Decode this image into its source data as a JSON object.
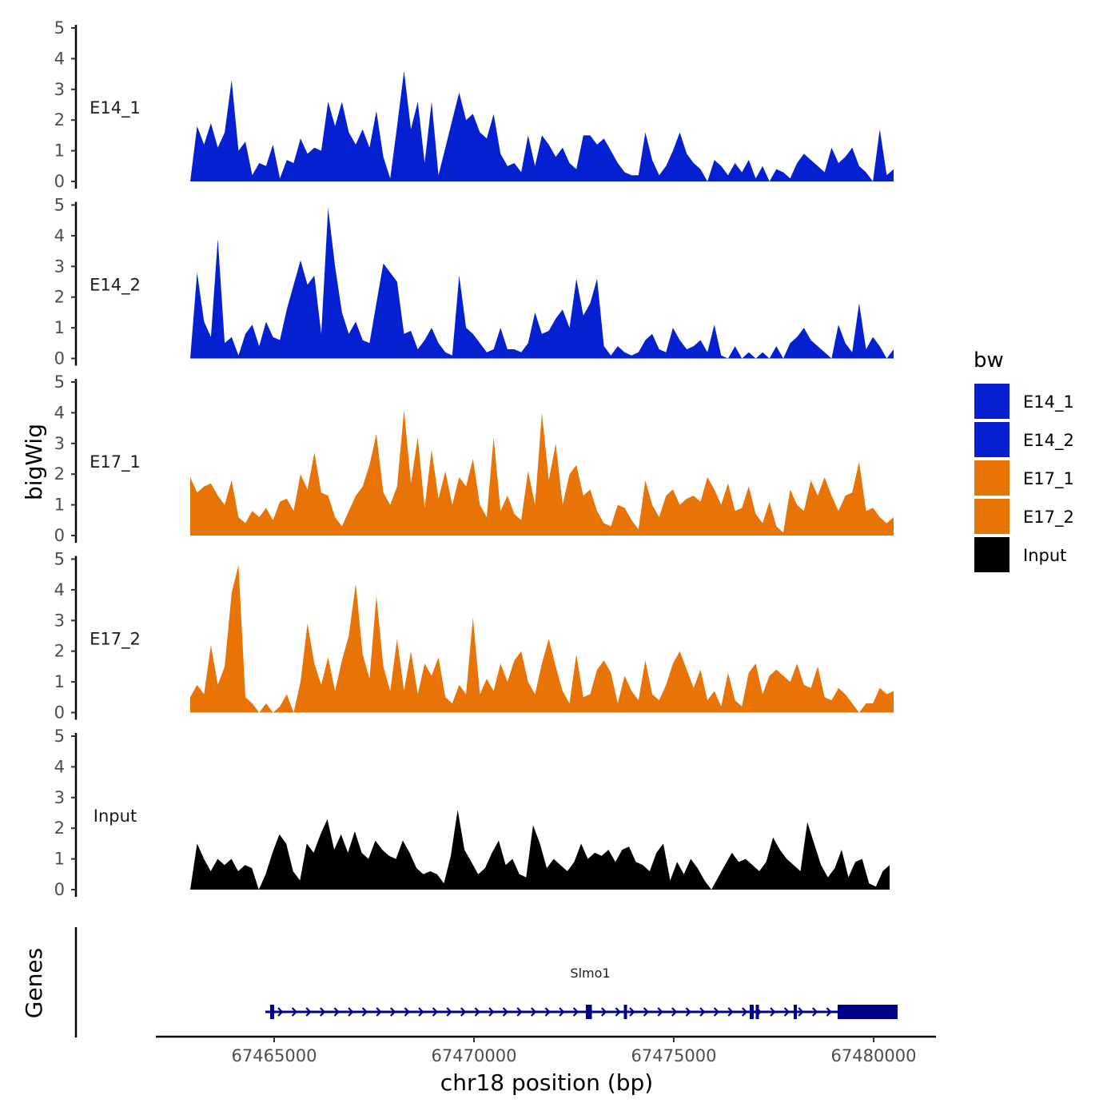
{
  "chart_data": {
    "type": "area",
    "title": "",
    "xlabel": "chr18 position (bp)",
    "ylabel": "bigWig",
    "genes_label": "Genes",
    "xlim": [
      67462000,
      67481500
    ],
    "ylim": [
      0,
      5
    ],
    "x_ticks": [
      67465000,
      67470000,
      67475000,
      67480000
    ],
    "x_tick_labels": [
      "67465000",
      "67470000",
      "67475000",
      "67480000"
    ],
    "y_ticks": [
      0,
      1,
      2,
      3,
      4,
      5
    ],
    "y_tick_labels": [
      "0",
      "1",
      "2",
      "3",
      "4",
      "5"
    ],
    "legend": {
      "title": "bw",
      "position": "right",
      "entries": [
        {
          "label": "E14_1",
          "color": "#0420D0"
        },
        {
          "label": "E14_2",
          "color": "#0420D0"
        },
        {
          "label": "E17_1",
          "color": "#E87306"
        },
        {
          "label": "E17_2",
          "color": "#E87306"
        },
        {
          "label": "Input",
          "color": "#000000"
        }
      ]
    },
    "series": [
      {
        "name": "E14_1",
        "color": "#0420D0",
        "x_start": 67462900,
        "x_end": 67480500,
        "values": [
          0,
          1.8,
          1.2,
          1.9,
          1.1,
          1.6,
          3.3,
          1.0,
          1.3,
          0.2,
          0.6,
          0.5,
          1.2,
          0.1,
          0.7,
          0.6,
          1.4,
          0.9,
          1.1,
          1.0,
          2.6,
          1.8,
          2.6,
          1.6,
          1.2,
          1.7,
          1.1,
          2.3,
          0.8,
          0.1,
          1.8,
          3.6,
          1.7,
          2.6,
          0.6,
          2.6,
          0.2,
          1.1,
          2.0,
          2.9,
          2.0,
          2.2,
          1.6,
          1.4,
          2.2,
          0.9,
          0.5,
          0.6,
          0.3,
          1.5,
          0.5,
          1.5,
          1.2,
          0.8,
          1.1,
          0.6,
          0.4,
          1.5,
          1.5,
          1.2,
          1.4,
          1.0,
          0.6,
          0.3,
          0.2,
          0.2,
          1.6,
          0.7,
          0.2,
          0.5,
          1.0,
          1.6,
          0.9,
          0.6,
          0.4,
          0,
          0.7,
          0.5,
          0.2,
          0.6,
          0.3,
          0.7,
          0.1,
          0.5,
          0,
          0.4,
          0.3,
          0.1,
          0.6,
          0.9,
          0.7,
          0.5,
          0.3,
          1.1,
          0.6,
          0.8,
          1.1,
          0.5,
          0.3,
          0,
          1.7,
          0.2,
          0.4
        ]
      },
      {
        "name": "E14_2",
        "color": "#0420D0",
        "x_start": 67462900,
        "x_end": 67480500,
        "values": [
          0,
          2.8,
          1.2,
          0.7,
          3.9,
          0.5,
          0.7,
          0.1,
          0.8,
          1.1,
          0.4,
          1.2,
          0.7,
          0.6,
          1.6,
          2.4,
          3.2,
          2.4,
          2.7,
          0.8,
          4.9,
          3.0,
          1.5,
          0.8,
          1.2,
          0.6,
          0.5,
          1.8,
          3.1,
          2.8,
          2.5,
          0.8,
          0.9,
          0.3,
          0.6,
          1.0,
          0.5,
          0.2,
          0.1,
          2.7,
          1.0,
          0.8,
          0.5,
          0.2,
          0.3,
          1.0,
          0.3,
          0.3,
          0.2,
          0.5,
          1.5,
          0.8,
          0.9,
          1.3,
          1.6,
          1.0,
          2.6,
          1.4,
          1.8,
          2.6,
          0.4,
          0.1,
          0.4,
          0.2,
          0.1,
          0.2,
          0.6,
          0.8,
          0.3,
          0.2,
          1.0,
          0.6,
          0.3,
          0.4,
          0.6,
          0.2,
          1.1,
          0.1,
          0,
          0.4,
          0,
          0.2,
          0,
          0.2,
          0,
          0.4,
          0,
          0.5,
          0.7,
          1.0,
          0.6,
          0.4,
          0.2,
          0,
          1.1,
          0.5,
          0.2,
          1.8,
          0.3,
          0.7,
          0.4,
          0,
          0.3
        ]
      },
      {
        "name": "E17_1",
        "color": "#E87306",
        "x_start": 67462900,
        "x_end": 67480500,
        "values": [
          1.9,
          1.4,
          1.6,
          1.7,
          1.3,
          1.0,
          1.8,
          0.6,
          0.4,
          0.8,
          0.6,
          0.9,
          0.5,
          1.1,
          1.2,
          0.8,
          2.0,
          1.5,
          2.7,
          1.4,
          1.3,
          0.6,
          0.3,
          0.8,
          1.3,
          1.6,
          2.3,
          3.3,
          1.4,
          1.0,
          1.6,
          4.1,
          1.7,
          3.2,
          0.9,
          2.8,
          1.2,
          2.1,
          1.0,
          1.9,
          1.6,
          2.5,
          1.0,
          0.6,
          3.2,
          0.8,
          1.3,
          0.7,
          0.5,
          2.1,
          1.0,
          4.0,
          1.8,
          3.0,
          1.0,
          2.0,
          2.3,
          1.3,
          1.5,
          0.8,
          0.4,
          0.3,
          1.0,
          0.9,
          0.5,
          0.2,
          1.8,
          1.0,
          0.6,
          1.3,
          1.5,
          1.0,
          1.2,
          1.3,
          1.1,
          1.9,
          1.5,
          1.0,
          1.7,
          0.8,
          0.9,
          1.6,
          0.7,
          0.4,
          1.1,
          0.3,
          0.1,
          1.5,
          1.0,
          0.8,
          1.8,
          1.3,
          1.9,
          1.3,
          0.8,
          1.3,
          1.4,
          2.4,
          0.8,
          0.9,
          0.6,
          0.4,
          0.6
        ]
      },
      {
        "name": "E17_2",
        "color": "#E87306",
        "x_start": 67462900,
        "x_end": 67480500,
        "values": [
          0.5,
          0.9,
          0.6,
          2.2,
          0.9,
          1.5,
          3.9,
          4.8,
          0.5,
          0.3,
          0,
          0.3,
          0,
          0.2,
          0.6,
          0,
          1.0,
          2.9,
          1.6,
          0.9,
          1.8,
          0.7,
          1.7,
          2.5,
          4.2,
          1.9,
          1.1,
          3.8,
          1.5,
          0.7,
          2.4,
          0.7,
          2.0,
          0.6,
          1.6,
          1.2,
          1.8,
          0.5,
          0.3,
          0.9,
          0.6,
          3.1,
          0.6,
          1.1,
          0.7,
          1.6,
          1.0,
          1.7,
          2.0,
          1.0,
          0.6,
          1.6,
          2.4,
          1.5,
          0.7,
          0.3,
          1.9,
          0.5,
          0.6,
          1.4,
          1.7,
          1.3,
          0.3,
          1.2,
          0.7,
          0.4,
          1.7,
          0.6,
          0.4,
          0.9,
          1.6,
          2.0,
          1.4,
          0.8,
          1.4,
          0.4,
          0.7,
          0.2,
          1.3,
          0.4,
          0.2,
          1.3,
          1.6,
          0.6,
          1.2,
          1.4,
          1.2,
          1.0,
          1.6,
          0.9,
          0.8,
          1.5,
          0.5,
          0.4,
          0.8,
          0.6,
          0.3,
          0,
          0.3,
          0.3,
          0.8,
          0.6,
          0.7
        ]
      },
      {
        "name": "Input",
        "color": "#000000",
        "x_start": 67462900,
        "x_end": 67480400,
        "values": [
          0,
          1.5,
          1.0,
          0.6,
          1.0,
          0.8,
          1.0,
          0.6,
          0.8,
          0.7,
          0,
          0.5,
          1.2,
          1.8,
          1.5,
          0.6,
          0.3,
          1.5,
          1.2,
          1.8,
          2.3,
          1.3,
          1.8,
          1.2,
          1.9,
          1.2,
          1.0,
          1.6,
          1.3,
          1.1,
          1.0,
          1.6,
          1.2,
          0.7,
          0.5,
          0.6,
          0.5,
          0.2,
          1.1,
          2.6,
          1.3,
          0.9,
          0.5,
          0.7,
          1.2,
          1.6,
          0.8,
          1.0,
          0.5,
          0.4,
          2.1,
          1.5,
          0.7,
          1.0,
          0.8,
          0.6,
          0.9,
          1.5,
          1.0,
          1.2,
          1.1,
          1.3,
          0.9,
          1.3,
          1.4,
          0.9,
          0.8,
          0.6,
          1.2,
          1.5,
          0.3,
          0.9,
          0.5,
          1.0,
          0.7,
          0.3,
          0,
          0.4,
          0.8,
          1.2,
          0.9,
          1.0,
          0.8,
          0.6,
          0.9,
          1.7,
          1.3,
          1.0,
          0.8,
          0.6,
          2.2,
          1.5,
          0.8,
          0.4,
          0.7,
          1.3,
          0.4,
          0.9,
          1.0,
          0.2,
          0.1,
          0.6,
          0.8
        ]
      }
    ],
    "genes": [
      {
        "name": "Slmo1",
        "strand": "+",
        "start": 67464900,
        "end": 67480600,
        "exons": [
          [
            67464900,
            67465000
          ],
          [
            67472800,
            67472950
          ],
          [
            67473750,
            67473830
          ],
          [
            67476900,
            67477000
          ],
          [
            67477050,
            67477120
          ],
          [
            67478000,
            67478080
          ],
          [
            67479100,
            67480600
          ]
        ]
      }
    ]
  }
}
